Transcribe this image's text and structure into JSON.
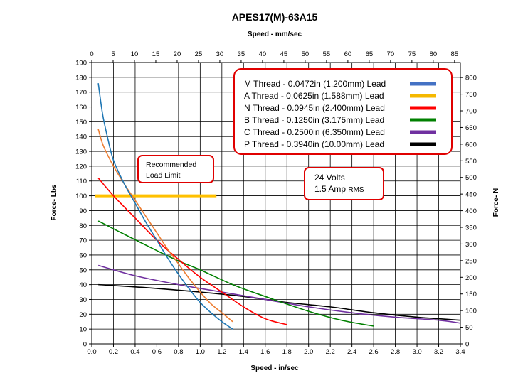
{
  "chart_data": {
    "type": "line",
    "title": "APES17(M)-63A15",
    "top_axis_label": "Speed - mm/sec",
    "bottom_axis_label": "Speed - in/sec",
    "left_axis_label": "Force- Lbs",
    "right_axis_label": "Force- N",
    "xlim": [
      0,
      3.4
    ],
    "ylim": [
      0,
      190
    ],
    "x_ticks": [
      "0.0",
      "0.2",
      "0.4",
      "0.6",
      "0.8",
      "1.0",
      "1.2",
      "1.4",
      "1.6",
      "1.8",
      "2.0",
      "2.2",
      "2.4",
      "2.6",
      "2.8",
      "3.0",
      "3.2",
      "3.4"
    ],
    "y_ticks": [
      "0",
      "10",
      "20",
      "30",
      "40",
      "50",
      "60",
      "70",
      "80",
      "90",
      "100",
      "110",
      "120",
      "130",
      "140",
      "150",
      "160",
      "170",
      "180",
      "190"
    ],
    "top_ticks": [
      "0",
      "5",
      "10",
      "15",
      "20",
      "25",
      "30",
      "35",
      "40",
      "45",
      "50",
      "55",
      "60",
      "65",
      "70",
      "75",
      "80",
      "85"
    ],
    "top_scale_mm_per_in": 25.4,
    "right_ticks": [
      "0",
      "50",
      "100",
      "150",
      "200",
      "250",
      "300",
      "350",
      "400",
      "450",
      "500",
      "550",
      "600",
      "650",
      "700",
      "750",
      "800"
    ],
    "right_scale_lbs_per_n": 0.224809,
    "grid": true,
    "legend_position": "top-right",
    "series": [
      {
        "name": "M Thread - 0.0472in (1.200mm) Lead",
        "color": "#4472C4",
        "line_color": "#1f77b4",
        "x": [
          0.06,
          0.1,
          0.15,
          0.2,
          0.3,
          0.4,
          0.5,
          0.6,
          0.7,
          0.8,
          0.9,
          1.0,
          1.1,
          1.2,
          1.3
        ],
        "y": [
          176,
          155,
          138,
          124,
          108,
          95,
          82,
          70,
          58,
          47,
          37,
          28,
          21,
          15,
          10
        ]
      },
      {
        "name": "A Thread - 0.0625in (1.588mm) Lead",
        "color": "#F5B800",
        "line_color": "#ED7D31",
        "x": [
          0.06,
          0.1,
          0.15,
          0.2,
          0.3,
          0.4,
          0.5,
          0.6,
          0.7,
          0.8,
          0.9,
          1.0,
          1.1,
          1.2,
          1.3
        ],
        "y": [
          145,
          135,
          127,
          120,
          108,
          97,
          86,
          75,
          64,
          54,
          44,
          35,
          27,
          21,
          15
        ]
      },
      {
        "name": "N Thread - 0.0945in (2.400mm) Lead",
        "color": "#FF0000",
        "line_color": "#FF0000",
        "x": [
          0.06,
          0.2,
          0.4,
          0.6,
          0.8,
          1.0,
          1.2,
          1.4,
          1.6,
          1.8
        ],
        "y": [
          112,
          100,
          85,
          70,
          57,
          45,
          35,
          25,
          17,
          13
        ]
      },
      {
        "name": "B Thread - 0.1250in (3.175mm) Lead",
        "color": "#008000",
        "line_color": "#008000",
        "x": [
          0.06,
          0.3,
          0.6,
          0.8,
          1.0,
          1.3,
          1.6,
          2.0,
          2.3,
          2.6
        ],
        "y": [
          83,
          74,
          63,
          56,
          50,
          40,
          32,
          22,
          16,
          12
        ]
      },
      {
        "name": "C Thread - 0.2500in (6.350mm) Lead",
        "color": "#7030A0",
        "line_color": "#7030A0",
        "x": [
          0.06,
          0.4,
          0.8,
          1.2,
          1.6,
          2.0,
          2.4,
          2.8,
          3.2,
          3.4
        ],
        "y": [
          53,
          46,
          40,
          35,
          30,
          25,
          21,
          18,
          16,
          14
        ]
      },
      {
        "name": "P Thread - 0.3940in (10.00mm) Lead",
        "color": "#000000",
        "line_color": "#000000",
        "x": [
          0.06,
          0.5,
          1.0,
          1.4,
          1.8,
          2.2,
          2.6,
          3.0,
          3.4
        ],
        "y": [
          40,
          38,
          35,
          32,
          28,
          25,
          21,
          18,
          16
        ]
      }
    ],
    "recommended_limit": {
      "label_line1": "Recommended",
      "label_line2": "Load Limit",
      "x": [
        0.03,
        1.15
      ],
      "y": 100,
      "color": "#FFC000"
    },
    "annotation": {
      "line1": "24 Volts",
      "line2_main": "1.5 Amp ",
      "line2_unit": "RMS"
    }
  }
}
